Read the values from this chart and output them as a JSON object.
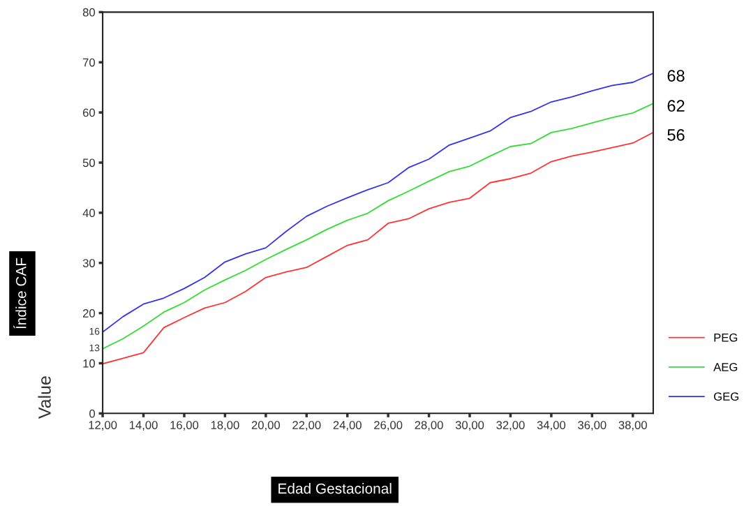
{
  "chart_data": {
    "type": "line",
    "ylabel": "Value",
    "xlabel": "Edad Gestacional",
    "x": [
      12,
      13,
      14,
      15,
      16,
      17,
      18,
      19,
      20,
      21,
      22,
      23,
      24,
      25,
      26,
      27,
      28,
      29,
      30,
      31,
      32,
      33,
      34,
      35,
      36,
      37,
      38,
      39
    ],
    "series": [
      {
        "name": "PEG",
        "color": "#ff3333",
        "values": [
          9.9,
          11.0,
          12.1,
          17.1,
          19.1,
          21.0,
          22.1,
          24.3,
          27.1,
          28.2,
          29.1,
          31.3,
          33.5,
          34.6,
          37.9,
          38.8,
          40.8,
          42.1,
          42.9,
          46.0,
          46.8,
          47.9,
          50.2,
          51.3,
          52.1,
          53.0,
          53.9,
          56.0
        ],
        "value_labels": [
          null,
          null,
          null,
          null,
          null,
          null,
          null,
          null,
          null,
          null,
          null,
          null,
          null,
          null,
          null,
          null,
          null,
          null,
          null,
          null,
          null,
          null,
          null,
          null,
          null,
          null,
          null,
          "56"
        ]
      },
      {
        "name": "AEG",
        "color": "#33dd33",
        "values": [
          12.9,
          14.9,
          17.4,
          20.2,
          22.1,
          24.6,
          26.6,
          28.5,
          30.7,
          32.7,
          34.6,
          36.7,
          38.5,
          39.9,
          42.4,
          44.3,
          46.3,
          48.2,
          49.3,
          51.3,
          53.2,
          53.8,
          56.0,
          56.8,
          57.9,
          59.0,
          59.9,
          61.8
        ],
        "value_labels": [
          "13",
          null,
          null,
          null,
          null,
          null,
          null,
          null,
          null,
          null,
          null,
          null,
          null,
          null,
          null,
          null,
          null,
          null,
          null,
          null,
          null,
          null,
          null,
          null,
          null,
          null,
          null,
          "62"
        ]
      },
      {
        "name": "GEG",
        "color": "#3333ee",
        "values": [
          16.2,
          19.3,
          21.8,
          23.0,
          24.9,
          27.1,
          30.2,
          31.8,
          33.0,
          36.3,
          39.3,
          41.3,
          43.0,
          44.6,
          46.0,
          49.0,
          50.7,
          53.5,
          54.9,
          56.3,
          59.0,
          60.2,
          62.1,
          63.1,
          64.3,
          65.4,
          66.0,
          67.8
        ],
        "value_labels": [
          "16",
          null,
          null,
          null,
          null,
          null,
          null,
          null,
          null,
          null,
          null,
          null,
          null,
          null,
          null,
          null,
          null,
          null,
          null,
          null,
          null,
          null,
          null,
          null,
          null,
          null,
          null,
          "68"
        ]
      }
    ],
    "xlim": [
      12,
      39
    ],
    "ylim": [
      0,
      80
    ],
    "xticks": [
      {
        "value": 12,
        "label": "12,00"
      },
      {
        "value": 14,
        "label": "14,00"
      },
      {
        "value": 16,
        "label": "16,00"
      },
      {
        "value": 18,
        "label": "18,00"
      },
      {
        "value": 20,
        "label": "20,00"
      },
      {
        "value": 22,
        "label": "22,00"
      },
      {
        "value": 24,
        "label": "24,00"
      },
      {
        "value": 26,
        "label": "26,00"
      },
      {
        "value": 28,
        "label": "28,00"
      },
      {
        "value": 30,
        "label": "30,00"
      },
      {
        "value": 32,
        "label": "32,00"
      },
      {
        "value": 34,
        "label": "34,00"
      },
      {
        "value": 36,
        "label": "36,00"
      },
      {
        "value": 38,
        "label": "38,00"
      }
    ],
    "yticks": [
      0,
      10,
      20,
      30,
      40,
      50,
      60,
      70,
      80
    ],
    "annotations": [
      "Índice CAF"
    ],
    "grid": false,
    "legend": "right",
    "marker": "none",
    "line_style": "solid"
  }
}
